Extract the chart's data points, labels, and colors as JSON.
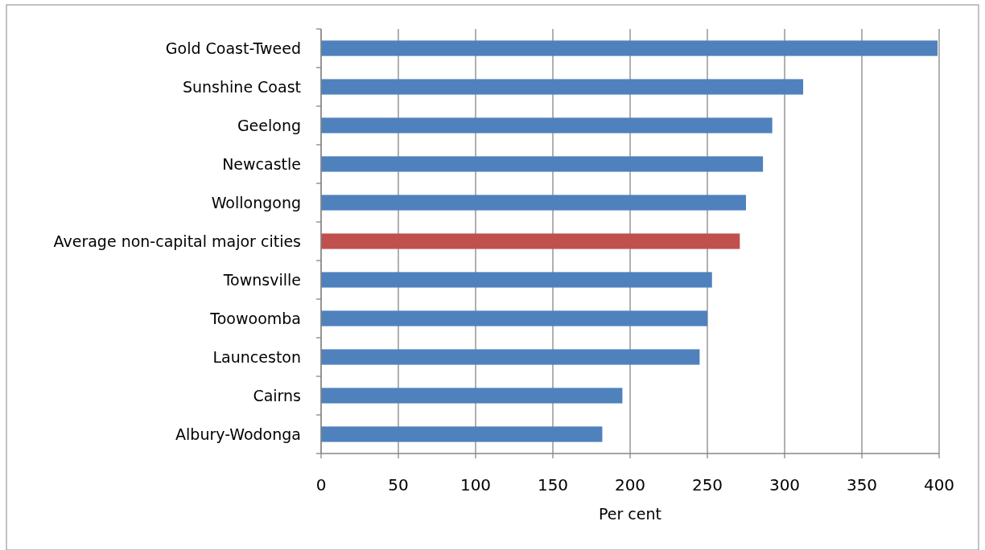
{
  "chart_data": {
    "type": "bar",
    "orientation": "horizontal",
    "xlabel": "Per cent",
    "categories": [
      "Gold Coast-Tweed",
      "Sunshine Coast",
      "Geelong",
      "Newcastle",
      "Wollongong",
      "Average non-capital major cities",
      "Townsville",
      "Toowoomba",
      "Launceston",
      "Cairns",
      "Albury-Wodonga"
    ],
    "values": [
      399,
      312,
      292,
      286,
      275,
      271,
      253,
      250,
      245,
      195,
      182
    ],
    "colors": [
      "#4f81bd",
      "#4f81bd",
      "#4f81bd",
      "#4f81bd",
      "#4f81bd",
      "#c0504d",
      "#4f81bd",
      "#4f81bd",
      "#4f81bd",
      "#4f81bd",
      "#4f81bd"
    ],
    "xlim": [
      0,
      400
    ],
    "xticks": [
      0,
      50,
      100,
      150,
      200,
      250,
      300,
      350,
      400
    ],
    "grid": "x"
  }
}
